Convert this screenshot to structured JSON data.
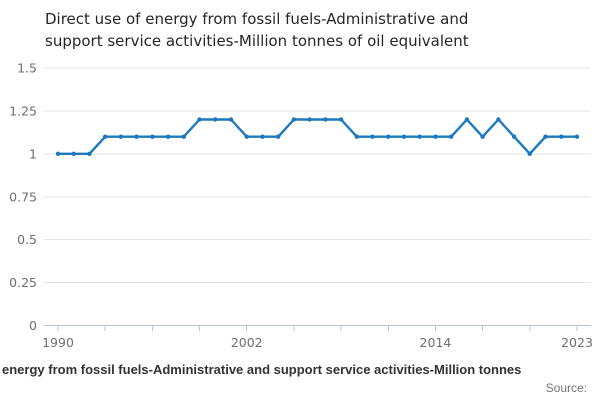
{
  "title": {
    "full": "Direct use of energy from fossil fuels-Administrative and support service activities-Million tonnes of oil equivalent",
    "line1": "Direct use of energy from fossil fuels-Administrative and",
    "line2": "support service activities-Million tonnes of oil equivalent"
  },
  "footer": {
    "caption": "energy from fossil fuels-Administrative and support service activities-Million tonnes",
    "source_label": "Source:"
  },
  "chart_data": {
    "type": "line",
    "title": "Direct use of energy from fossil fuels-Administrative and support service activities-Million tonnes of oil equivalent",
    "xlabel": "",
    "ylabel": "",
    "x": [
      1990,
      1991,
      1992,
      1993,
      1994,
      1995,
      1996,
      1997,
      1998,
      1999,
      2000,
      2001,
      2002,
      2003,
      2004,
      2005,
      2006,
      2007,
      2008,
      2009,
      2010,
      2011,
      2012,
      2013,
      2014,
      2015,
      2016,
      2017,
      2018,
      2019,
      2020,
      2021,
      2022,
      2023
    ],
    "series": [
      {
        "name": "Direct use of energy from fossil fuels-Administrative and support service activities",
        "values": [
          1.0,
          1.0,
          1.0,
          1.1,
          1.1,
          1.1,
          1.1,
          1.1,
          1.1,
          1.2,
          1.2,
          1.2,
          1.1,
          1.1,
          1.1,
          1.2,
          1.2,
          1.2,
          1.2,
          1.1,
          1.1,
          1.1,
          1.1,
          1.1,
          1.1,
          1.1,
          1.2,
          1.1,
          1.2,
          1.1,
          1.0,
          1.1,
          1.1,
          1.1
        ]
      }
    ],
    "ylim": [
      0,
      1.5
    ],
    "yticks": [
      0,
      0.25,
      0.5,
      0.75,
      1,
      1.25,
      1.5
    ],
    "ytick_labels": [
      "0",
      "0.25",
      "0.5",
      "0.75",
      "1",
      "1.25",
      "1.5"
    ],
    "xticks": [
      1990,
      1993,
      1996,
      1999,
      2002,
      2005,
      2008,
      2011,
      2014,
      2017,
      2020,
      2023
    ],
    "xtick_labels": [
      {
        "year": 1990,
        "label": "1990"
      },
      {
        "year": 2002,
        "label": "2002"
      },
      {
        "year": 2014,
        "label": "2014"
      },
      {
        "year": 2023,
        "label": "2023"
      }
    ],
    "grid": true,
    "legend": "none",
    "marker": "dot",
    "colors": {
      "line": "#1e78be",
      "gridline": "#e4e4e4",
      "axis": "#b9c5d4",
      "tick_label": "#6f6f6f"
    }
  }
}
